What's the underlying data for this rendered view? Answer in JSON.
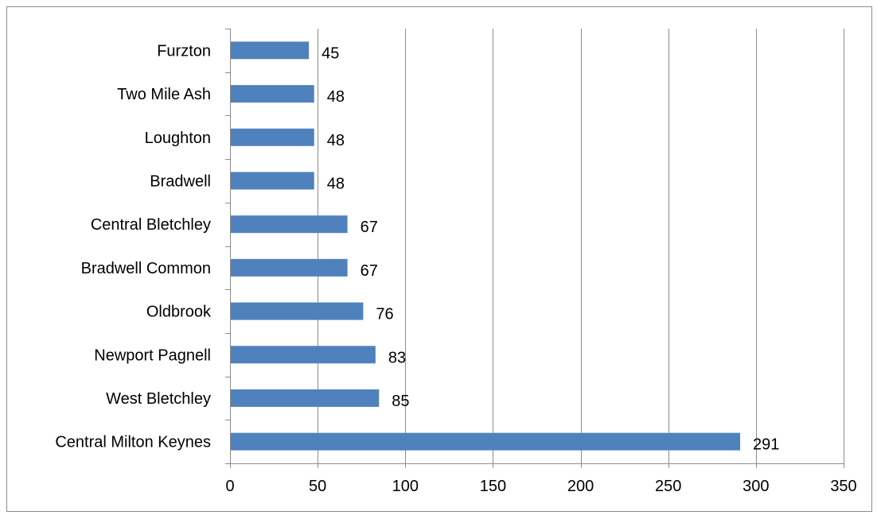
{
  "chart_data": {
    "type": "bar",
    "orientation": "horizontal",
    "categories": [
      "Furzton",
      "Two Mile Ash",
      "Loughton",
      "Bradwell",
      "Central Bletchley",
      "Bradwell Common",
      "Oldbrook",
      "Newport Pagnell",
      "West Bletchley",
      "Central Milton Keynes"
    ],
    "values": [
      45,
      48,
      48,
      48,
      67,
      67,
      76,
      83,
      85,
      291
    ],
    "data_labels": [
      "45",
      "48",
      "48",
      "48",
      "67",
      "67",
      "76",
      "83",
      "85",
      "291"
    ],
    "title": "",
    "xlabel": "",
    "ylabel": "",
    "xlim": [
      0,
      350
    ],
    "x_ticks": [
      0,
      50,
      100,
      150,
      200,
      250,
      300,
      350
    ],
    "x_tick_labels": [
      "0",
      "50",
      "100",
      "150",
      "200",
      "250",
      "300",
      "350"
    ],
    "grid": "vertical",
    "legend": "none",
    "bar_color": "#4f81bd",
    "grid_color": "#8c8c8c",
    "axis_color": "#8c8c8c"
  }
}
